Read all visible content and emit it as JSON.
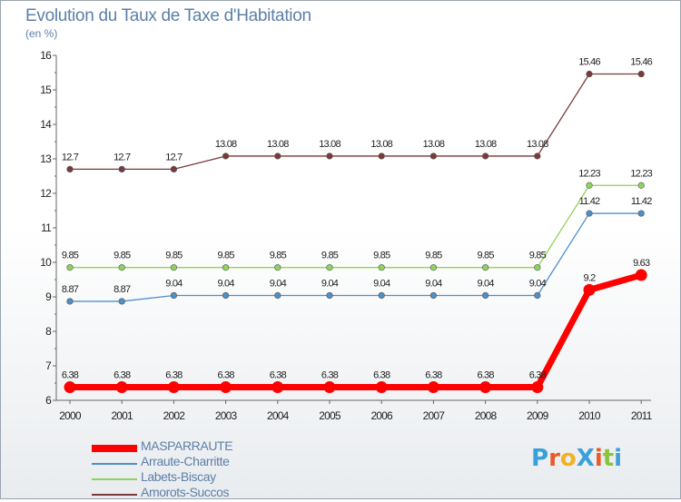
{
  "header": {
    "title": "Evolution du Taux de Taxe d'Habitation",
    "subtitle": "(en %)"
  },
  "logo": {
    "text": "ProXiti",
    "colors": [
      "#3aa1d8",
      "#e85b2a",
      "#f3b222",
      "#3aa1d8",
      "#e85b2a",
      "#8ac43f",
      "#3aa1d8"
    ]
  },
  "chart_data": {
    "type": "line",
    "title": "Evolution du Taux de Taxe d'Habitation",
    "subtitle": "(en %)",
    "x": [
      "2000",
      "2001",
      "2002",
      "2003",
      "2004",
      "2005",
      "2006",
      "2007",
      "2008",
      "2009",
      "2010",
      "2011"
    ],
    "yticks": [
      "6",
      "7",
      "8",
      "9",
      "10",
      "11",
      "12",
      "13",
      "14",
      "15",
      "16"
    ],
    "ylim": [
      6,
      16
    ],
    "grid": false,
    "legend_position": "bottom-left",
    "series": [
      {
        "name": "MASPARRAUTE",
        "color": "#ff0000",
        "values": [
          6.38,
          6.38,
          6.38,
          6.38,
          6.38,
          6.38,
          6.38,
          6.38,
          6.38,
          6.38,
          9.2,
          9.63
        ],
        "labels": [
          "6.38",
          "6.38",
          "6.38",
          "6.38",
          "6.38",
          "6.38",
          "6.38",
          "6.38",
          "6.38",
          "6.38",
          "9.2",
          "9.63"
        ]
      },
      {
        "name": "Arraute-Charritte",
        "color": "#4f8fc8",
        "values": [
          8.87,
          8.87,
          9.04,
          9.04,
          9.04,
          9.04,
          9.04,
          9.04,
          9.04,
          9.04,
          11.42,
          11.42
        ],
        "labels": [
          "8.87",
          "8.87",
          "9.04",
          "9.04",
          "9.04",
          "9.04",
          "9.04",
          "9.04",
          "9.04",
          "9.04",
          "11.42",
          "11.42"
        ]
      },
      {
        "name": "Labets-Biscay",
        "color": "#8fd45a",
        "values": [
          9.85,
          9.85,
          9.85,
          9.85,
          9.85,
          9.85,
          9.85,
          9.85,
          9.85,
          9.85,
          12.23,
          12.23
        ],
        "labels": [
          "9.85",
          "9.85",
          "9.85",
          "9.85",
          "9.85",
          "9.85",
          "9.85",
          "9.85",
          "9.85",
          "9.85",
          "12.23",
          "12.23"
        ]
      },
      {
        "name": "Amorots-Succos",
        "color": "#7a3a3a",
        "values": [
          12.7,
          12.7,
          12.7,
          13.08,
          13.08,
          13.08,
          13.08,
          13.08,
          13.08,
          13.08,
          15.46,
          15.46
        ],
        "labels": [
          "12.7",
          "12.7",
          "12.7",
          "13.08",
          "13.08",
          "13.08",
          "13.08",
          "13.08",
          "13.08",
          "13.08",
          "15.46",
          "15.46"
        ]
      }
    ]
  }
}
